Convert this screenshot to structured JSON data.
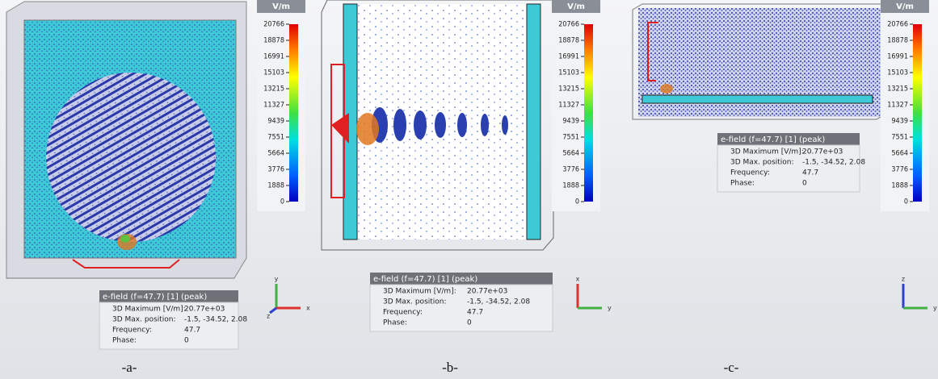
{
  "panels": [
    {
      "unit": "V/m",
      "scale": [
        20766,
        18878,
        16991,
        15103,
        13215,
        11327,
        9439,
        7551,
        5664,
        3776,
        1888,
        0
      ],
      "info": {
        "title": "e-field (f=47.7) [1] (peak)",
        "rows": [
          [
            "3D Maximum [V/m]:",
            "20.77e+03"
          ],
          [
            "3D Max. position:",
            "-1.5, -34.52, 2.08"
          ],
          [
            "Frequency:",
            "47.7"
          ],
          [
            "Phase:",
            "0"
          ]
        ]
      },
      "axes": [
        "y",
        "x",
        "z"
      ],
      "caption": "-a-"
    },
    {
      "unit": "V/m",
      "scale": [
        20766,
        18878,
        16991,
        15103,
        13215,
        11327,
        9439,
        7551,
        5664,
        3776,
        1888,
        0
      ],
      "info": {
        "title": "e-field (f=47.7) [1] (peak)",
        "rows": [
          [
            "3D Maximum [V/m]:",
            "20.77e+03"
          ],
          [
            "3D Max. position:",
            "-1.5, -34.52, 2.08"
          ],
          [
            "Frequency:",
            "47.7"
          ],
          [
            "Phase:",
            "0"
          ]
        ]
      },
      "axes": [
        "x",
        "y"
      ],
      "caption": "-b-"
    },
    {
      "unit": "V/m",
      "scale": [
        20766,
        18878,
        16991,
        15103,
        13215,
        11327,
        9439,
        7551,
        5664,
        3776,
        1888,
        0
      ],
      "info": {
        "title": "e-field (f=47.7) [1] (peak)",
        "rows": [
          [
            "3D Maximum [V/m]:",
            "20.77e+03"
          ],
          [
            "3D Max. position:",
            "-1.5, -34.52, 2.08"
          ],
          [
            "Frequency:",
            "47.7"
          ],
          [
            "Phase:",
            "0"
          ]
        ]
      },
      "axes": [
        "z",
        "y"
      ],
      "caption": "-c-"
    }
  ]
}
